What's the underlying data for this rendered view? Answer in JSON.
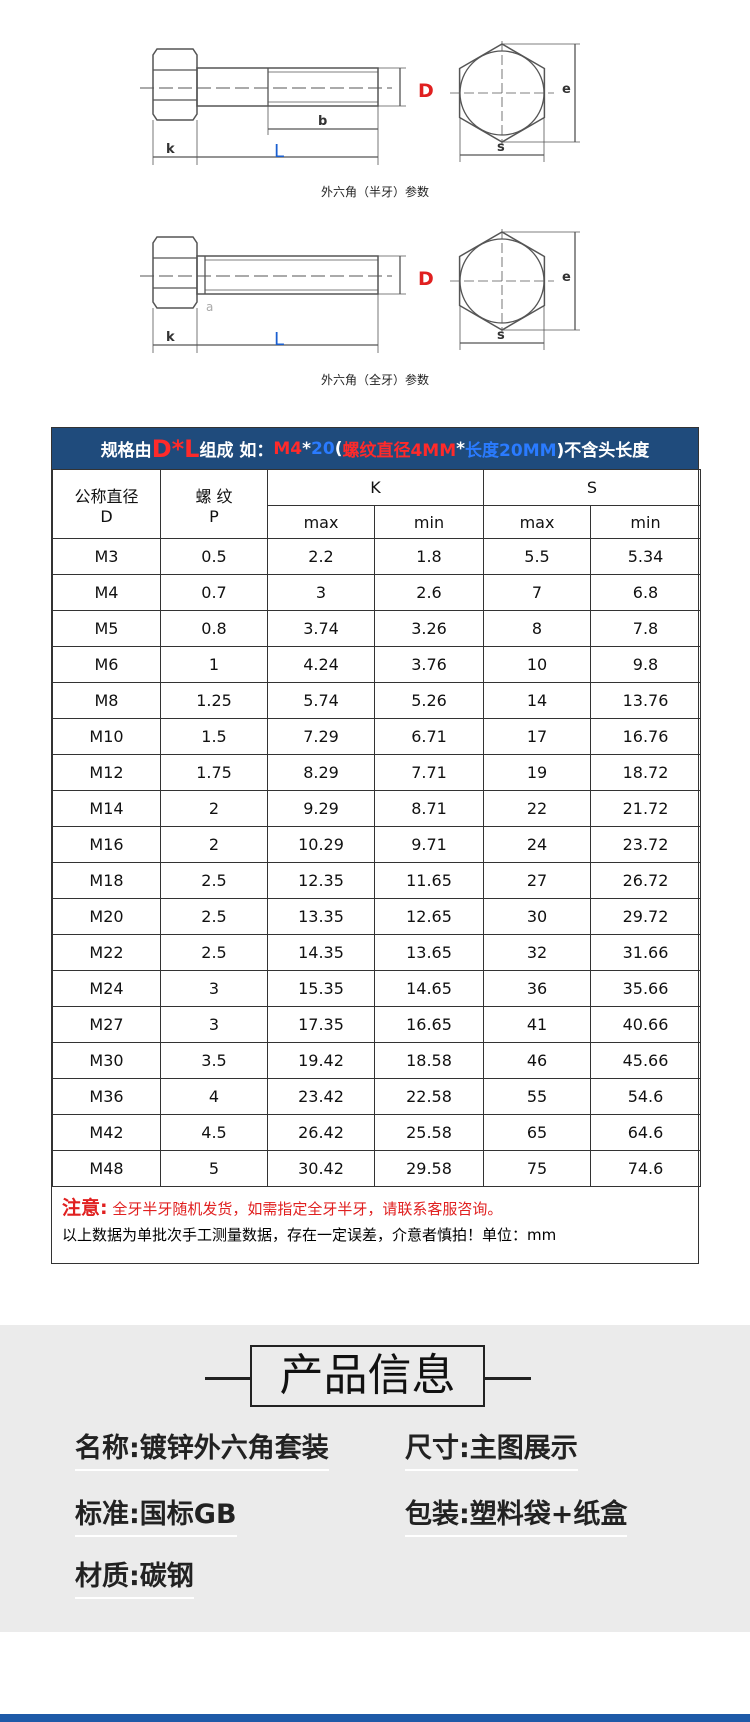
{
  "diagrams": [
    {
      "caption": "外六角（半牙）参数",
      "labels": [
        "D",
        "L",
        "b",
        "k",
        "e",
        "s"
      ]
    },
    {
      "caption": "外六角（全牙）参数",
      "labels": [
        "D",
        "L",
        "a",
        "k",
        "e",
        "s"
      ]
    }
  ],
  "table": {
    "banner": [
      "规格由",
      "D*L",
      "组成 如：",
      "M4",
      "*",
      "20",
      "(",
      "螺纹直径4MM",
      "*",
      "长度20MM",
      ")不含头长度"
    ],
    "header": {
      "diameter": [
        "公称直径",
        "D"
      ],
      "pitch": [
        "螺 纹",
        "P"
      ],
      "groups": [
        "K",
        "S"
      ],
      "sub": [
        "max",
        "min",
        "max",
        "min"
      ]
    },
    "rows": [
      [
        "M3",
        0.5,
        2.2,
        1.8,
        5.5,
        5.34
      ],
      [
        "M4",
        0.7,
        3,
        2.6,
        7,
        6.8
      ],
      [
        "M5",
        0.8,
        3.74,
        3.26,
        8,
        7.8
      ],
      [
        "M6",
        1,
        4.24,
        3.76,
        10,
        9.8
      ],
      [
        "M8",
        1.25,
        5.74,
        5.26,
        14,
        13.76
      ],
      [
        "M10",
        1.5,
        7.29,
        6.71,
        17,
        16.76
      ],
      [
        "M12",
        1.75,
        8.29,
        7.71,
        19,
        18.72
      ],
      [
        "M14",
        2,
        9.29,
        8.71,
        22,
        21.72
      ],
      [
        "M16",
        2,
        10.29,
        9.71,
        24,
        23.72
      ],
      [
        "M18",
        2.5,
        12.35,
        11.65,
        27,
        26.72
      ],
      [
        "M20",
        2.5,
        13.35,
        12.65,
        30,
        29.72
      ],
      [
        "M22",
        2.5,
        14.35,
        13.65,
        32,
        31.66
      ],
      [
        "M24",
        3,
        15.35,
        14.65,
        36,
        35.66
      ],
      [
        "M27",
        3,
        17.35,
        16.65,
        41,
        40.66
      ],
      [
        "M30",
        3.5,
        19.42,
        18.58,
        46,
        45.66
      ],
      [
        "M36",
        4,
        23.42,
        22.58,
        55,
        54.6
      ],
      [
        "M42",
        4.5,
        26.42,
        25.58,
        65,
        64.6
      ],
      [
        "M48",
        5,
        30.42,
        29.58,
        75,
        74.6
      ]
    ],
    "notes": {
      "label": "注意:",
      "text": "全牙半牙随机发货，如需指定全牙半牙，请联系客服咨询。",
      "line2": "以上数据为单批次手工测量数据，存在一定误差，介意者慎拍！单位：mm"
    }
  },
  "product_info": {
    "title": "产品信息",
    "fields": [
      "名称:镀锌外六角套装",
      "尺寸:主图展示",
      "标准:国标GB",
      "包装:塑料袋+纸盒",
      "材质:碳钢"
    ]
  }
}
